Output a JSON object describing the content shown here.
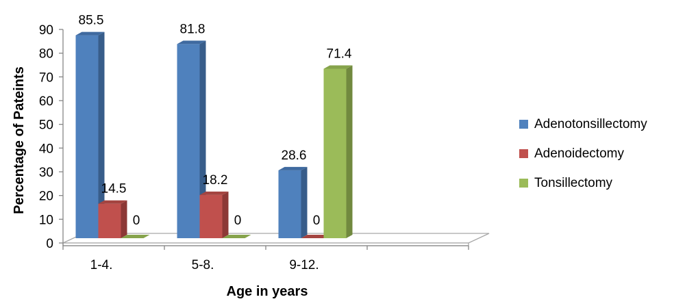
{
  "chart_data": {
    "type": "bar",
    "categories": [
      "1-4.",
      "5-8.",
      "9-12."
    ],
    "series": [
      {
        "name": "Adenotonsillectomy",
        "values": [
          85.5,
          81.8,
          28.6
        ]
      },
      {
        "name": "Adenoidectomy",
        "values": [
          14.5,
          18.2,
          0
        ]
      },
      {
        "name": "Tonsillectomy",
        "values": [
          0,
          0,
          71.4
        ]
      }
    ],
    "data_labels": [
      [
        "85.5",
        "81.8",
        "28.6"
      ],
      [
        "14.5",
        "18.2",
        "0"
      ],
      [
        "0",
        "0",
        "71.4"
      ]
    ],
    "xlabel": "Age in years",
    "ylabel": "Percentage of Pateints",
    "ylim": [
      0,
      90
    ],
    "yticks": [
      0,
      10,
      20,
      30,
      40,
      50,
      60,
      70,
      80,
      90
    ],
    "legend_position": "right",
    "grid": false,
    "colors": {
      "Adenotonsillectomy": {
        "front": "#4f81bd",
        "side": "#385d8a",
        "top": "#3f6aa0"
      },
      "Adenoidectomy": {
        "front": "#c0504d",
        "side": "#8c3836",
        "top": "#a44440"
      },
      "Tonsillectomy": {
        "front": "#9bbb59",
        "side": "#71893f",
        "top": "#86a34b"
      }
    }
  }
}
